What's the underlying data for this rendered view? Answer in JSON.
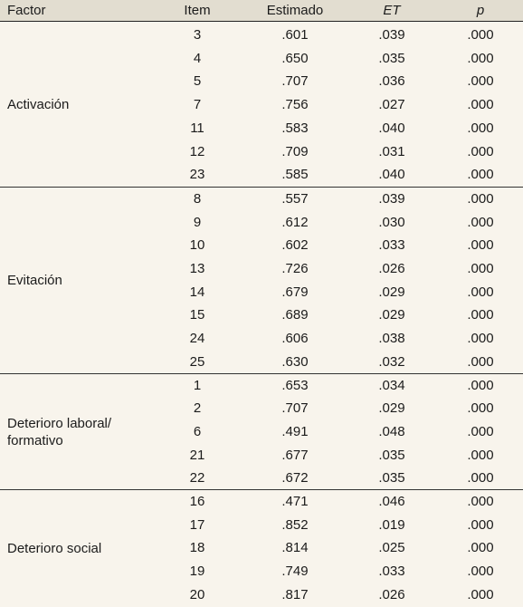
{
  "header": {
    "factor": "Factor",
    "item": "Item",
    "estimado": "Estimado",
    "et": "ET",
    "p": "p"
  },
  "groups": [
    {
      "factor": "Activación",
      "rows": [
        {
          "item": "3",
          "est": ".601",
          "et": ".039",
          "p": ".000"
        },
        {
          "item": "4",
          "est": ".650",
          "et": ".035",
          "p": ".000"
        },
        {
          "item": "5",
          "est": ".707",
          "et": ".036",
          "p": ".000"
        },
        {
          "item": "7",
          "est": ".756",
          "et": ".027",
          "p": ".000"
        },
        {
          "item": "11",
          "est": ".583",
          "et": ".040",
          "p": ".000"
        },
        {
          "item": "12",
          "est": ".709",
          "et": ".031",
          "p": ".000"
        },
        {
          "item": "23",
          "est": ".585",
          "et": ".040",
          "p": ".000"
        }
      ]
    },
    {
      "factor": "Evitación",
      "rows": [
        {
          "item": "8",
          "est": ".557",
          "et": ".039",
          "p": ".000"
        },
        {
          "item": "9",
          "est": ".612",
          "et": ".030",
          "p": ".000"
        },
        {
          "item": "10",
          "est": ".602",
          "et": ".033",
          "p": ".000"
        },
        {
          "item": "13",
          "est": ".726",
          "et": ".026",
          "p": ".000"
        },
        {
          "item": "14",
          "est": ".679",
          "et": ".029",
          "p": ".000"
        },
        {
          "item": "15",
          "est": ".689",
          "et": ".029",
          "p": ".000"
        },
        {
          "item": "24",
          "est": ".606",
          "et": ".038",
          "p": ".000"
        },
        {
          "item": "25",
          "est": ".630",
          "et": ".032",
          "p": ".000"
        }
      ]
    },
    {
      "factor": "Deterioro laboral/ formativo",
      "rows": [
        {
          "item": "1",
          "est": ".653",
          "et": ".034",
          "p": ".000"
        },
        {
          "item": "2",
          "est": ".707",
          "et": ".029",
          "p": ".000"
        },
        {
          "item": "6",
          "est": ".491",
          "et": ".048",
          "p": ".000"
        },
        {
          "item": "21",
          "est": ".677",
          "et": ".035",
          "p": ".000"
        },
        {
          "item": "22",
          "est": ".672",
          "et": ".035",
          "p": ".000"
        }
      ]
    },
    {
      "factor": "Deterioro social",
      "rows": [
        {
          "item": "16",
          "est": ".471",
          "et": ".046",
          "p": ".000"
        },
        {
          "item": "17",
          "est": ".852",
          "et": ".019",
          "p": ".000"
        },
        {
          "item": "18",
          "est": ".814",
          "et": ".025",
          "p": ".000"
        },
        {
          "item": "19",
          "est": ".749",
          "et": ".033",
          "p": ".000"
        },
        {
          "item": "20",
          "est": ".817",
          "et": ".026",
          "p": ".000"
        }
      ]
    }
  ]
}
